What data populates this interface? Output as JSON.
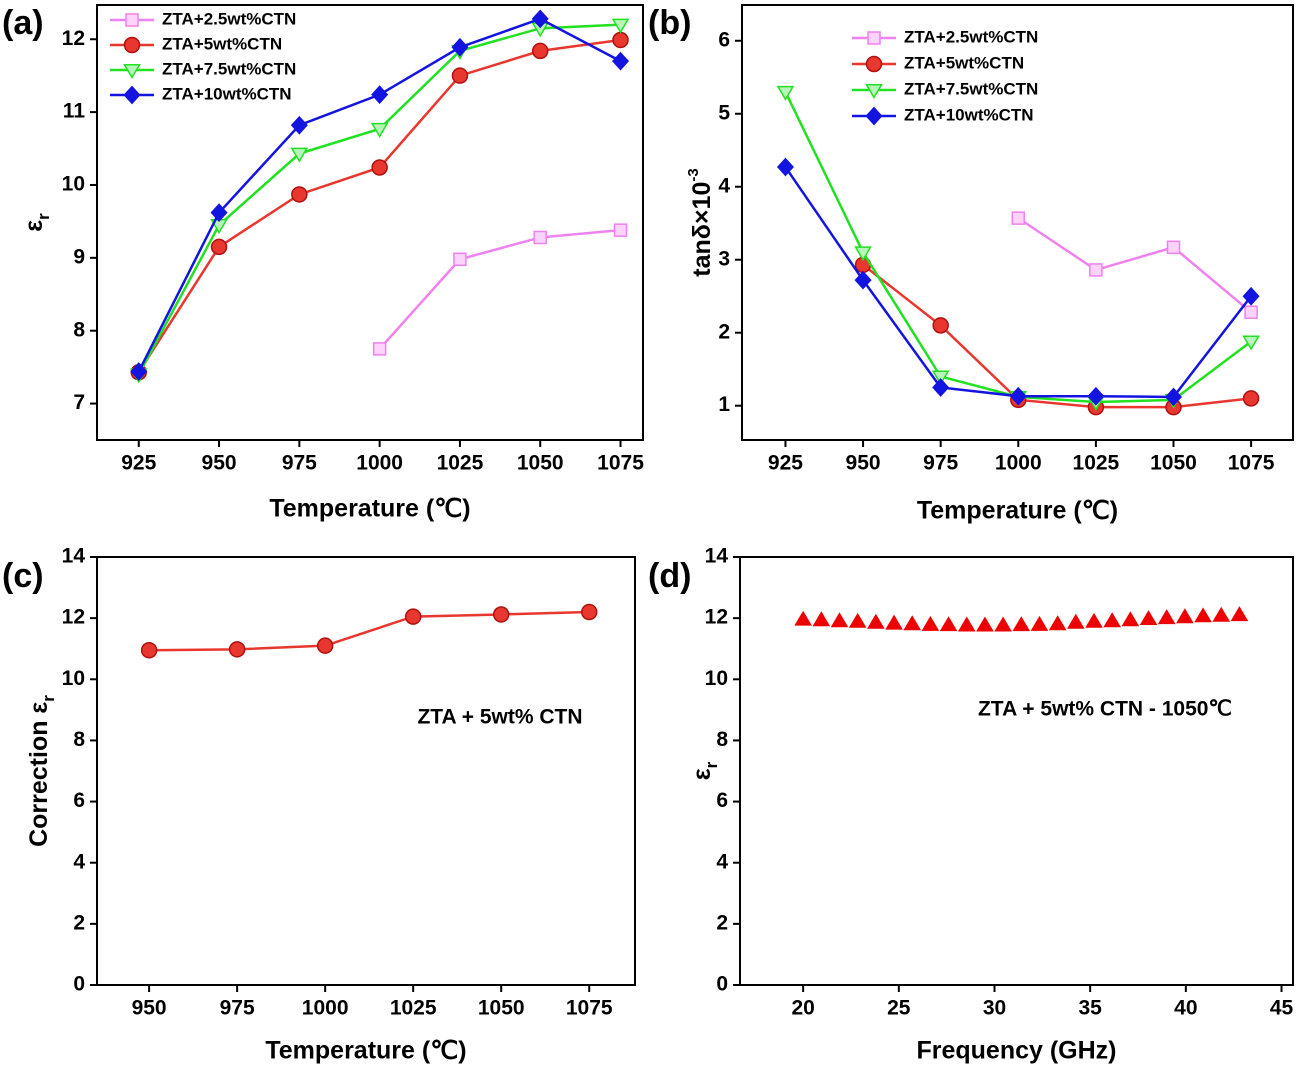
{
  "chart_data": [
    {
      "type": "line",
      "panel": "(a)",
      "xlabel": "Temperature (℃)",
      "ylabel": "ε",
      "ylabel_sub": "r",
      "x": [
        925,
        950,
        975,
        1000,
        1025,
        1050,
        1075
      ],
      "xlim": [
        912,
        1082
      ],
      "xticks": [
        925,
        950,
        975,
        1000,
        1025,
        1050,
        1075
      ],
      "ylim": [
        6.5,
        12.47
      ],
      "yticks": [
        7,
        8,
        9,
        10,
        11,
        12
      ],
      "legend": "upper left",
      "series": [
        {
          "name": "ZTA+2.5wt%CTN",
          "color": "#ee82ee",
          "marker": "square-open",
          "values": [
            null,
            null,
            null,
            7.75,
            8.98,
            9.28,
            9.38
          ]
        },
        {
          "name": "ZTA+5wt%CTN",
          "color": "#e8372f",
          "marker": "circle",
          "values": [
            7.43,
            9.15,
            9.87,
            10.24,
            11.5,
            11.84,
            11.99
          ]
        },
        {
          "name": "ZTA+7.5wt%CTN",
          "color": "#22e022",
          "marker": "triangle-down",
          "values": [
            7.4,
            9.45,
            10.43,
            10.77,
            11.84,
            12.15,
            12.2
          ]
        },
        {
          "name": "ZTA+10wt%CTN",
          "color": "#1414e0",
          "marker": "diamond",
          "values": [
            7.44,
            9.62,
            10.82,
            11.24,
            11.89,
            12.28,
            11.7
          ]
        }
      ]
    },
    {
      "type": "line",
      "panel": "(b)",
      "xlabel": "Temperature (℃)",
      "ylabel": "tanδ×10",
      "ylabel_sup": "-3",
      "x": [
        925,
        950,
        975,
        1000,
        1025,
        1050,
        1075
      ],
      "xlim": [
        911,
        1088.5
      ],
      "xticks": [
        925,
        950,
        975,
        1000,
        1025,
        1050,
        1075
      ],
      "ylim": [
        0.53,
        6.49
      ],
      "yticks": [
        1,
        2,
        3,
        4,
        5,
        6
      ],
      "legend": "upper center",
      "series": [
        {
          "name": "ZTA+2.5wt%CTN",
          "color": "#ee82ee",
          "marker": "square-open",
          "values": [
            null,
            null,
            null,
            3.57,
            2.86,
            3.17,
            2.28
          ]
        },
        {
          "name": "ZTA+5wt%CTN",
          "color": "#e8372f",
          "marker": "circle",
          "values": [
            null,
            2.93,
            2.1,
            1.08,
            0.98,
            0.98,
            1.1
          ]
        },
        {
          "name": "ZTA+7.5wt%CTN",
          "color": "#22e022",
          "marker": "triangle-down",
          "values": [
            5.3,
            3.1,
            1.4,
            1.12,
            1.05,
            1.08,
            1.88
          ]
        },
        {
          "name": "ZTA+10wt%CTN",
          "color": "#1414e0",
          "marker": "diamond",
          "values": [
            4.27,
            2.72,
            1.25,
            1.13,
            1.13,
            1.12,
            2.5
          ]
        }
      ]
    },
    {
      "type": "line",
      "panel": "(c)",
      "xlabel": "Temperature (℃)",
      "ylabel": "Correction ε",
      "ylabel_sub": "r",
      "annotation": "ZTA + 5wt% CTN",
      "x": [
        950,
        975,
        1000,
        1025,
        1050,
        1075
      ],
      "xlim": [
        935.2,
        1088
      ],
      "xticks": [
        950,
        975,
        1000,
        1025,
        1050,
        1075
      ],
      "ylim": [
        0,
        14
      ],
      "yticks": [
        0,
        2,
        4,
        6,
        8,
        10,
        12,
        14
      ],
      "series": [
        {
          "color": "#e8372f",
          "marker": "circle",
          "values": [
            10.95,
            10.98,
            11.1,
            12.05,
            12.12,
            12.2
          ]
        }
      ]
    },
    {
      "type": "scatter",
      "panel": "(d)",
      "xlabel": "Frequency (GHz)",
      "ylabel": "ε",
      "ylabel_sub": "r",
      "annotation": "ZTA + 5wt% CTN - 1050℃",
      "x": [
        20,
        20.95,
        21.9,
        22.85,
        23.8,
        24.75,
        25.7,
        26.65,
        27.6,
        28.55,
        29.5,
        30.45,
        31.4,
        32.35,
        33.3,
        34.25,
        35.2,
        36.15,
        37.1,
        38.05,
        39,
        39.95,
        40.9,
        41.85,
        42.8
      ],
      "xlim": [
        16.7,
        45.6
      ],
      "xticks": [
        20,
        25,
        30,
        35,
        40,
        45
      ],
      "ylim": [
        0,
        14
      ],
      "yticks": [
        0,
        2,
        4,
        6,
        8,
        10,
        12,
        14
      ],
      "series": [
        {
          "color": "#ee0000",
          "marker": "triangle",
          "values": [
            11.95,
            11.93,
            11.9,
            11.88,
            11.85,
            11.82,
            11.8,
            11.78,
            11.77,
            11.76,
            11.76,
            11.76,
            11.77,
            11.78,
            11.8,
            11.85,
            11.88,
            11.9,
            11.93,
            11.97,
            12.0,
            12.03,
            12.06,
            12.08,
            12.1
          ]
        }
      ]
    }
  ]
}
